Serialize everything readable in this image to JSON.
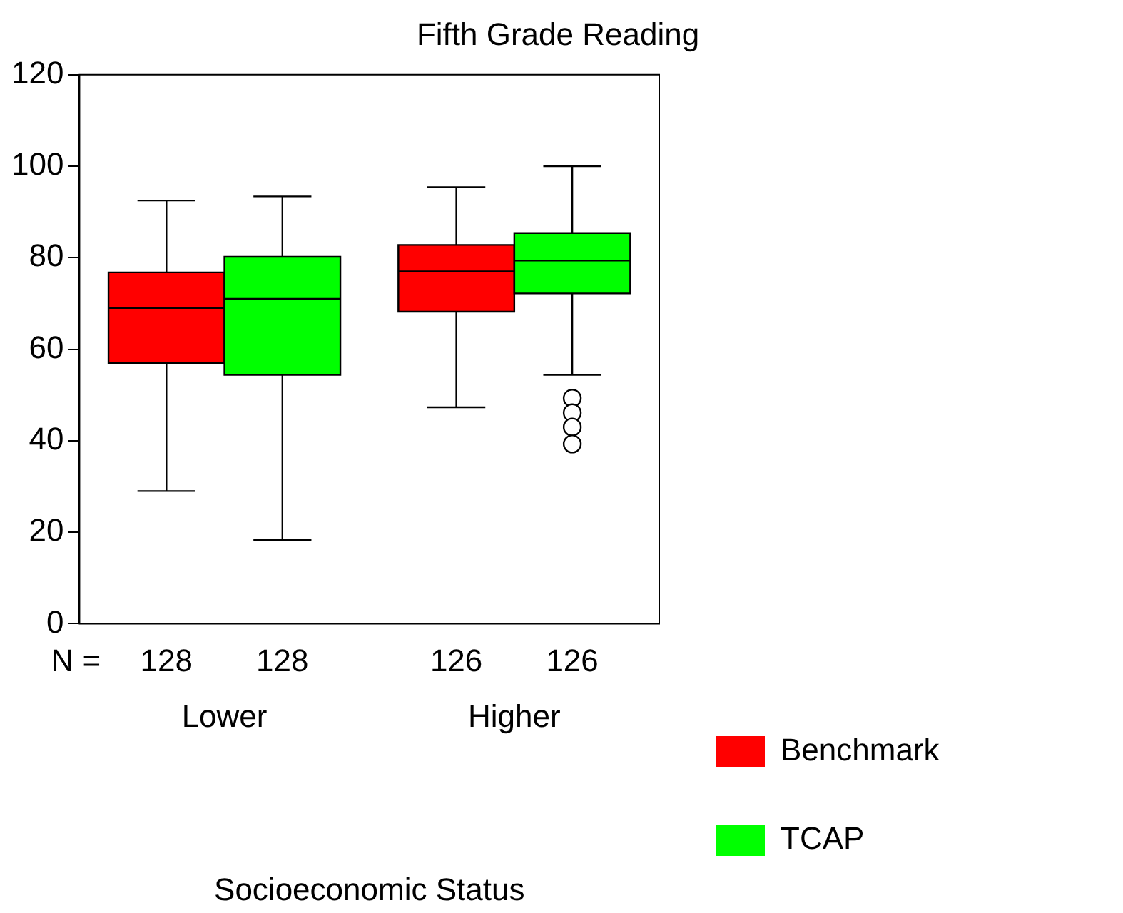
{
  "chart_data": {
    "type": "box",
    "title": "Fifth Grade Reading",
    "xlabel": "Socioeconomic Status",
    "categories": [
      "Lower",
      "Higher"
    ],
    "series": [
      {
        "name": "Benchmark",
        "color": "#ff0000",
        "boxes": [
          {
            "low": 29,
            "q1": 57,
            "median": 69,
            "q3": 76.8,
            "high": 92.5
          },
          {
            "low": 47.3,
            "q1": 68.2,
            "median": 77,
            "q3": 82.8,
            "high": 95.4
          }
        ]
      },
      {
        "name": "TCAP",
        "color": "#00ff00",
        "boxes": [
          {
            "low": 18.3,
            "q1": 54.4,
            "median": 71,
            "q3": 80.2,
            "high": 93.4
          },
          {
            "low": 54.4,
            "q1": 72.2,
            "median": 79.4,
            "q3": 85.4,
            "high": 100,
            "outliers": [
              49.3,
              46.1,
              43,
              39.3
            ]
          }
        ]
      }
    ],
    "ylim": [
      0,
      120
    ],
    "yticks": [
      0,
      20,
      40,
      60,
      80,
      100,
      120
    ],
    "annotations": [
      "N =",
      "128",
      "128",
      "126",
      "126"
    ],
    "legend": "bottom right",
    "grid": false
  }
}
